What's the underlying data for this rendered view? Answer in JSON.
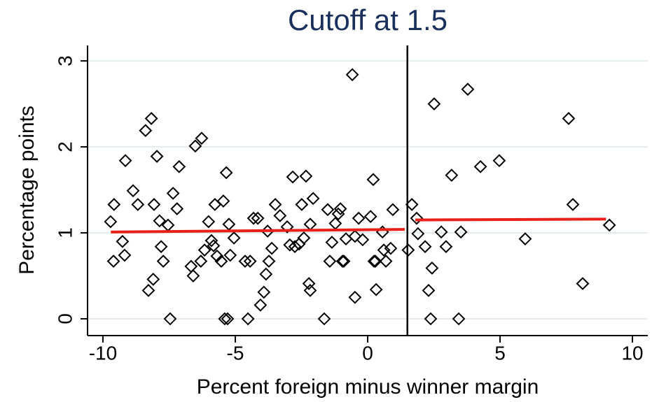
{
  "chart_data": {
    "type": "scatter",
    "title": "Cutoff at 1.5",
    "xlabel": "Percent foreign minus winner margin",
    "ylabel": "Percentage points",
    "xlim": [
      -10.58,
      10.58
    ],
    "ylim": [
      -0.195,
      3.18
    ],
    "xticks": [
      -10,
      -5,
      0,
      5,
      10
    ],
    "yticks": [
      0,
      1,
      2,
      3
    ],
    "grid": true,
    "cutoff": 1.5,
    "series": [
      {
        "color": "#000000",
        "x": [
          -9.71,
          -9.58,
          -9.6,
          -9.26,
          -9.18,
          -9.15,
          -8.86,
          -8.68,
          -8.39,
          -8.17,
          -8.28,
          -8.1,
          -8.07,
          -7.96,
          -7.86,
          -7.8,
          -7.72,
          -7.54,
          -7.46,
          -7.35,
          -7.2,
          -7.12,
          -6.67,
          -6.59,
          -6.51,
          -6.27,
          -6.3,
          -6.16,
          -6.01,
          -5.9,
          -5.82,
          -5.77,
          -5.69,
          -5.53,
          -5.45,
          -5.4,
          -5.34,
          -5.29,
          -5.24,
          -5.19,
          -5.05,
          -4.63,
          -4.52,
          -4.44,
          -4.31,
          -4.15,
          -4.05,
          -3.92,
          -3.84,
          -3.78,
          -3.73,
          -3.62,
          -3.49,
          -3.31,
          -3.04,
          -2.94,
          -2.83,
          -2.75,
          -2.59,
          -2.49,
          -2.41,
          -2.33,
          -2.22,
          -2.17,
          -2.17,
          -2.06,
          -1.64,
          -1.51,
          -1.43,
          -1.35,
          -1.22,
          -1.11,
          -1.03,
          -0.95,
          -0.9,
          -0.82,
          -0.58,
          -0.48,
          -0.48,
          -0.34,
          -0.19,
          0.11,
          0.21,
          0.24,
          0.29,
          0.32,
          0.56,
          0.61,
          0.69,
          0.87,
          0.95,
          1.53,
          1.67,
          1.85,
          1.9,
          2.17,
          2.3,
          2.38,
          2.43,
          2.51,
          2.78,
          2.96,
          3.17,
          3.44,
          3.52,
          3.78,
          4.26,
          4.97,
          5.95,
          7.59,
          7.75,
          8.12,
          9.13
        ],
        "values": [
          1.13,
          1.33,
          0.67,
          0.9,
          0.74,
          1.84,
          1.49,
          1.33,
          2.19,
          2.33,
          0.33,
          0.46,
          1.33,
          1.89,
          1.14,
          0.84,
          0.67,
          1.09,
          0,
          1.46,
          1.28,
          1.77,
          0.61,
          0.5,
          2.01,
          2.1,
          0.67,
          0.8,
          1.13,
          0.91,
          0.85,
          1.33,
          0.73,
          0.67,
          1.37,
          0,
          1.7,
          0,
          1.1,
          0.74,
          0.94,
          0.67,
          0,
          0.67,
          1.17,
          1.17,
          0.16,
          0.31,
          0.52,
          1.02,
          0.67,
          0.82,
          1.33,
          1.2,
          1.07,
          0.86,
          1.65,
          0.84,
          0.87,
          1.33,
          0.94,
          1.66,
          0.41,
          0.33,
          1.1,
          1.4,
          0,
          1.27,
          0.67,
          0.89,
          1.11,
          1.22,
          1.28,
          0.67,
          0.67,
          0.93,
          2.84,
          0.25,
          0.96,
          1.17,
          0.92,
          1.19,
          1.62,
          0.67,
          0.67,
          0.34,
          1.01,
          0.8,
          0.67,
          0.82,
          1.27,
          0.8,
          1.33,
          1.17,
          0.99,
          0.84,
          0.33,
          0,
          0.59,
          2.5,
          1.01,
          0.84,
          1.67,
          0,
          1.01,
          2.67,
          1.77,
          1.84,
          0.93,
          2.33,
          1.33,
          0.41,
          1.09
        ]
      }
    ],
    "fits": [
      {
        "color": "#e8201a",
        "x": [
          -9.7,
          1.4
        ],
        "values": [
          1.01,
          1.04
        ]
      },
      {
        "color": "#e8201a",
        "x": [
          1.8,
          9.0
        ],
        "values": [
          1.15,
          1.16
        ]
      }
    ]
  }
}
